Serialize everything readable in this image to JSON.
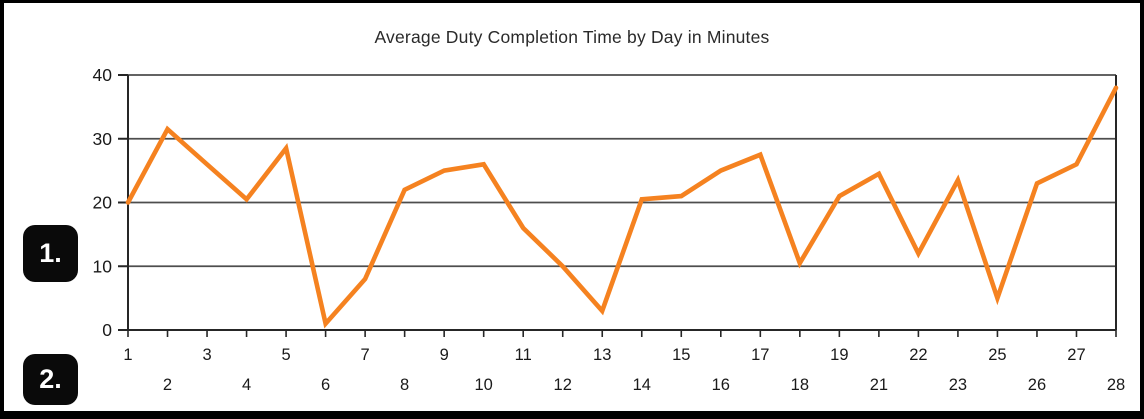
{
  "chart_data": {
    "type": "line",
    "title": "Average Duty Completion Time by Day in Minutes",
    "categories": [
      "1",
      "2",
      "3",
      "4",
      "5",
      "6",
      "7",
      "8",
      "9",
      "10",
      "11",
      "12",
      "13",
      "14",
      "15",
      "16",
      "17",
      "18",
      "19",
      "21",
      "22",
      "23",
      "25",
      "26",
      "27",
      "28"
    ],
    "values": [
      20,
      31.5,
      26,
      20.5,
      28.5,
      1,
      8,
      22,
      25,
      26,
      16,
      10,
      3,
      20.5,
      21,
      25,
      27.5,
      10.5,
      21,
      24.5,
      12,
      23.5,
      5,
      23,
      26,
      38
    ],
    "xlabel": "",
    "ylabel": "",
    "ylim": [
      0,
      40
    ],
    "yticks": [
      0,
      10,
      20,
      30,
      40
    ],
    "grid": true,
    "legend": false,
    "x_label_rows": "alternating",
    "line_color": "#F58220",
    "grid_color": "#4d4d4d",
    "axis_color": "#262626",
    "label_color": "#1a1a1a"
  },
  "annotations": {
    "badge1": "1.",
    "badge2": "2."
  },
  "colors": {
    "frame_border": "#000000",
    "background": "#ffffff",
    "badge_bg": "#0a0a0a",
    "badge_text": "#ffffff"
  }
}
